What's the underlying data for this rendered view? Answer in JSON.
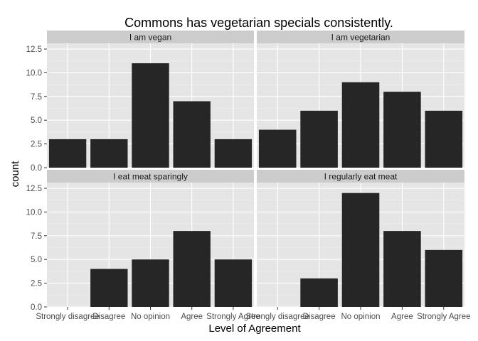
{
  "chart_data": {
    "type": "bar",
    "title": "Commons has vegetarian specials consistently.",
    "xlabel": "Level of Agreement",
    "ylabel": "count",
    "ylim": [
      0,
      13.1
    ],
    "yticks": [
      "0.0",
      "2.5",
      "5.0",
      "7.5",
      "10.0",
      "12.5"
    ],
    "categories": [
      "Strongly disagree",
      "Disagree",
      "No opinion",
      "Agree",
      "Strongly Agree"
    ],
    "grid": true,
    "facet_layout": "2x2",
    "panels": [
      {
        "name": "I am vegan",
        "values": [
          3,
          3,
          11,
          7,
          3
        ]
      },
      {
        "name": "I am vegetarian",
        "values": [
          4,
          6,
          9,
          8,
          6
        ]
      },
      {
        "name": "I eat meat sparingly",
        "values": [
          0,
          4,
          5,
          8,
          5
        ]
      },
      {
        "name": "I regularly eat meat",
        "values": [
          0,
          3,
          12,
          8,
          6
        ]
      }
    ],
    "colors": {
      "bar": "#262626",
      "panel_background": "#e5e5e5",
      "strip_background": "#cccccc",
      "major_grid": "#ffffff",
      "minor_grid": "#f0f0f0",
      "tick_text": "#4d4d4d"
    }
  }
}
